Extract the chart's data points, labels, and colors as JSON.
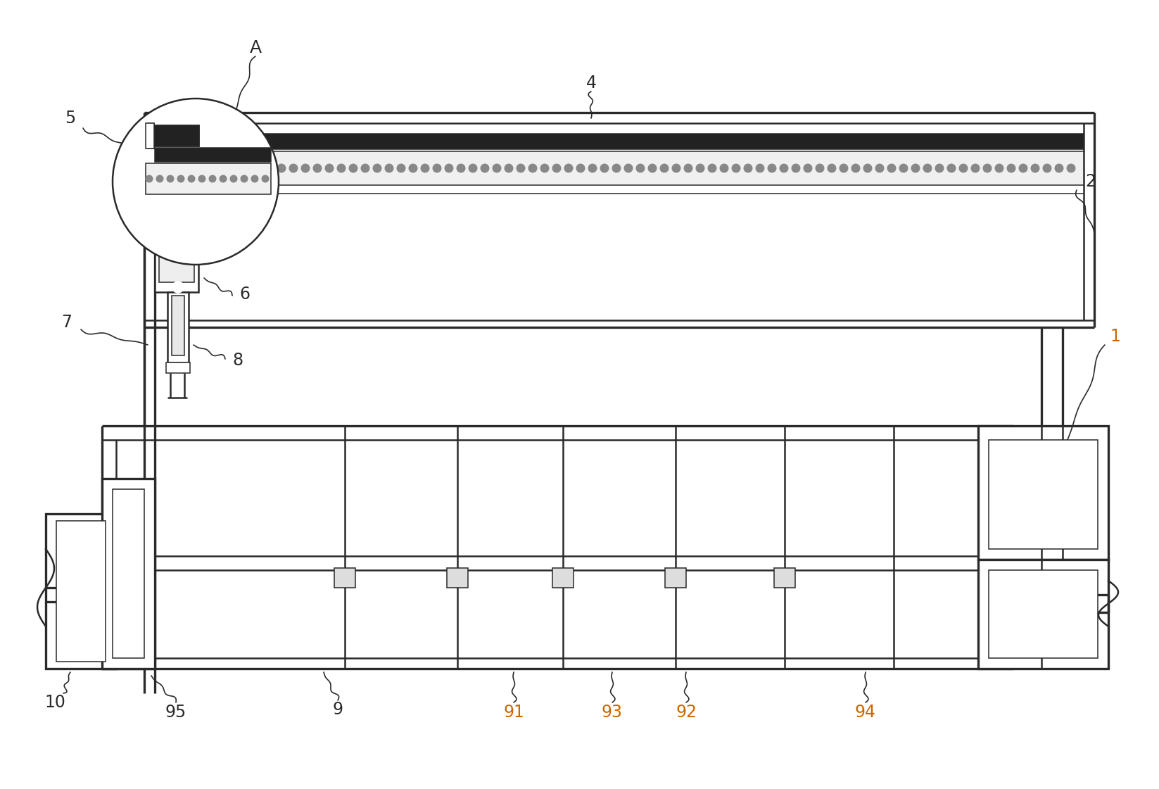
{
  "bg_color": "#ffffff",
  "line_color": "#2a2a2a",
  "label_color": "#2a2a2a",
  "number_color": "#cc6600",
  "fig_width": 16.47,
  "fig_height": 11.21
}
